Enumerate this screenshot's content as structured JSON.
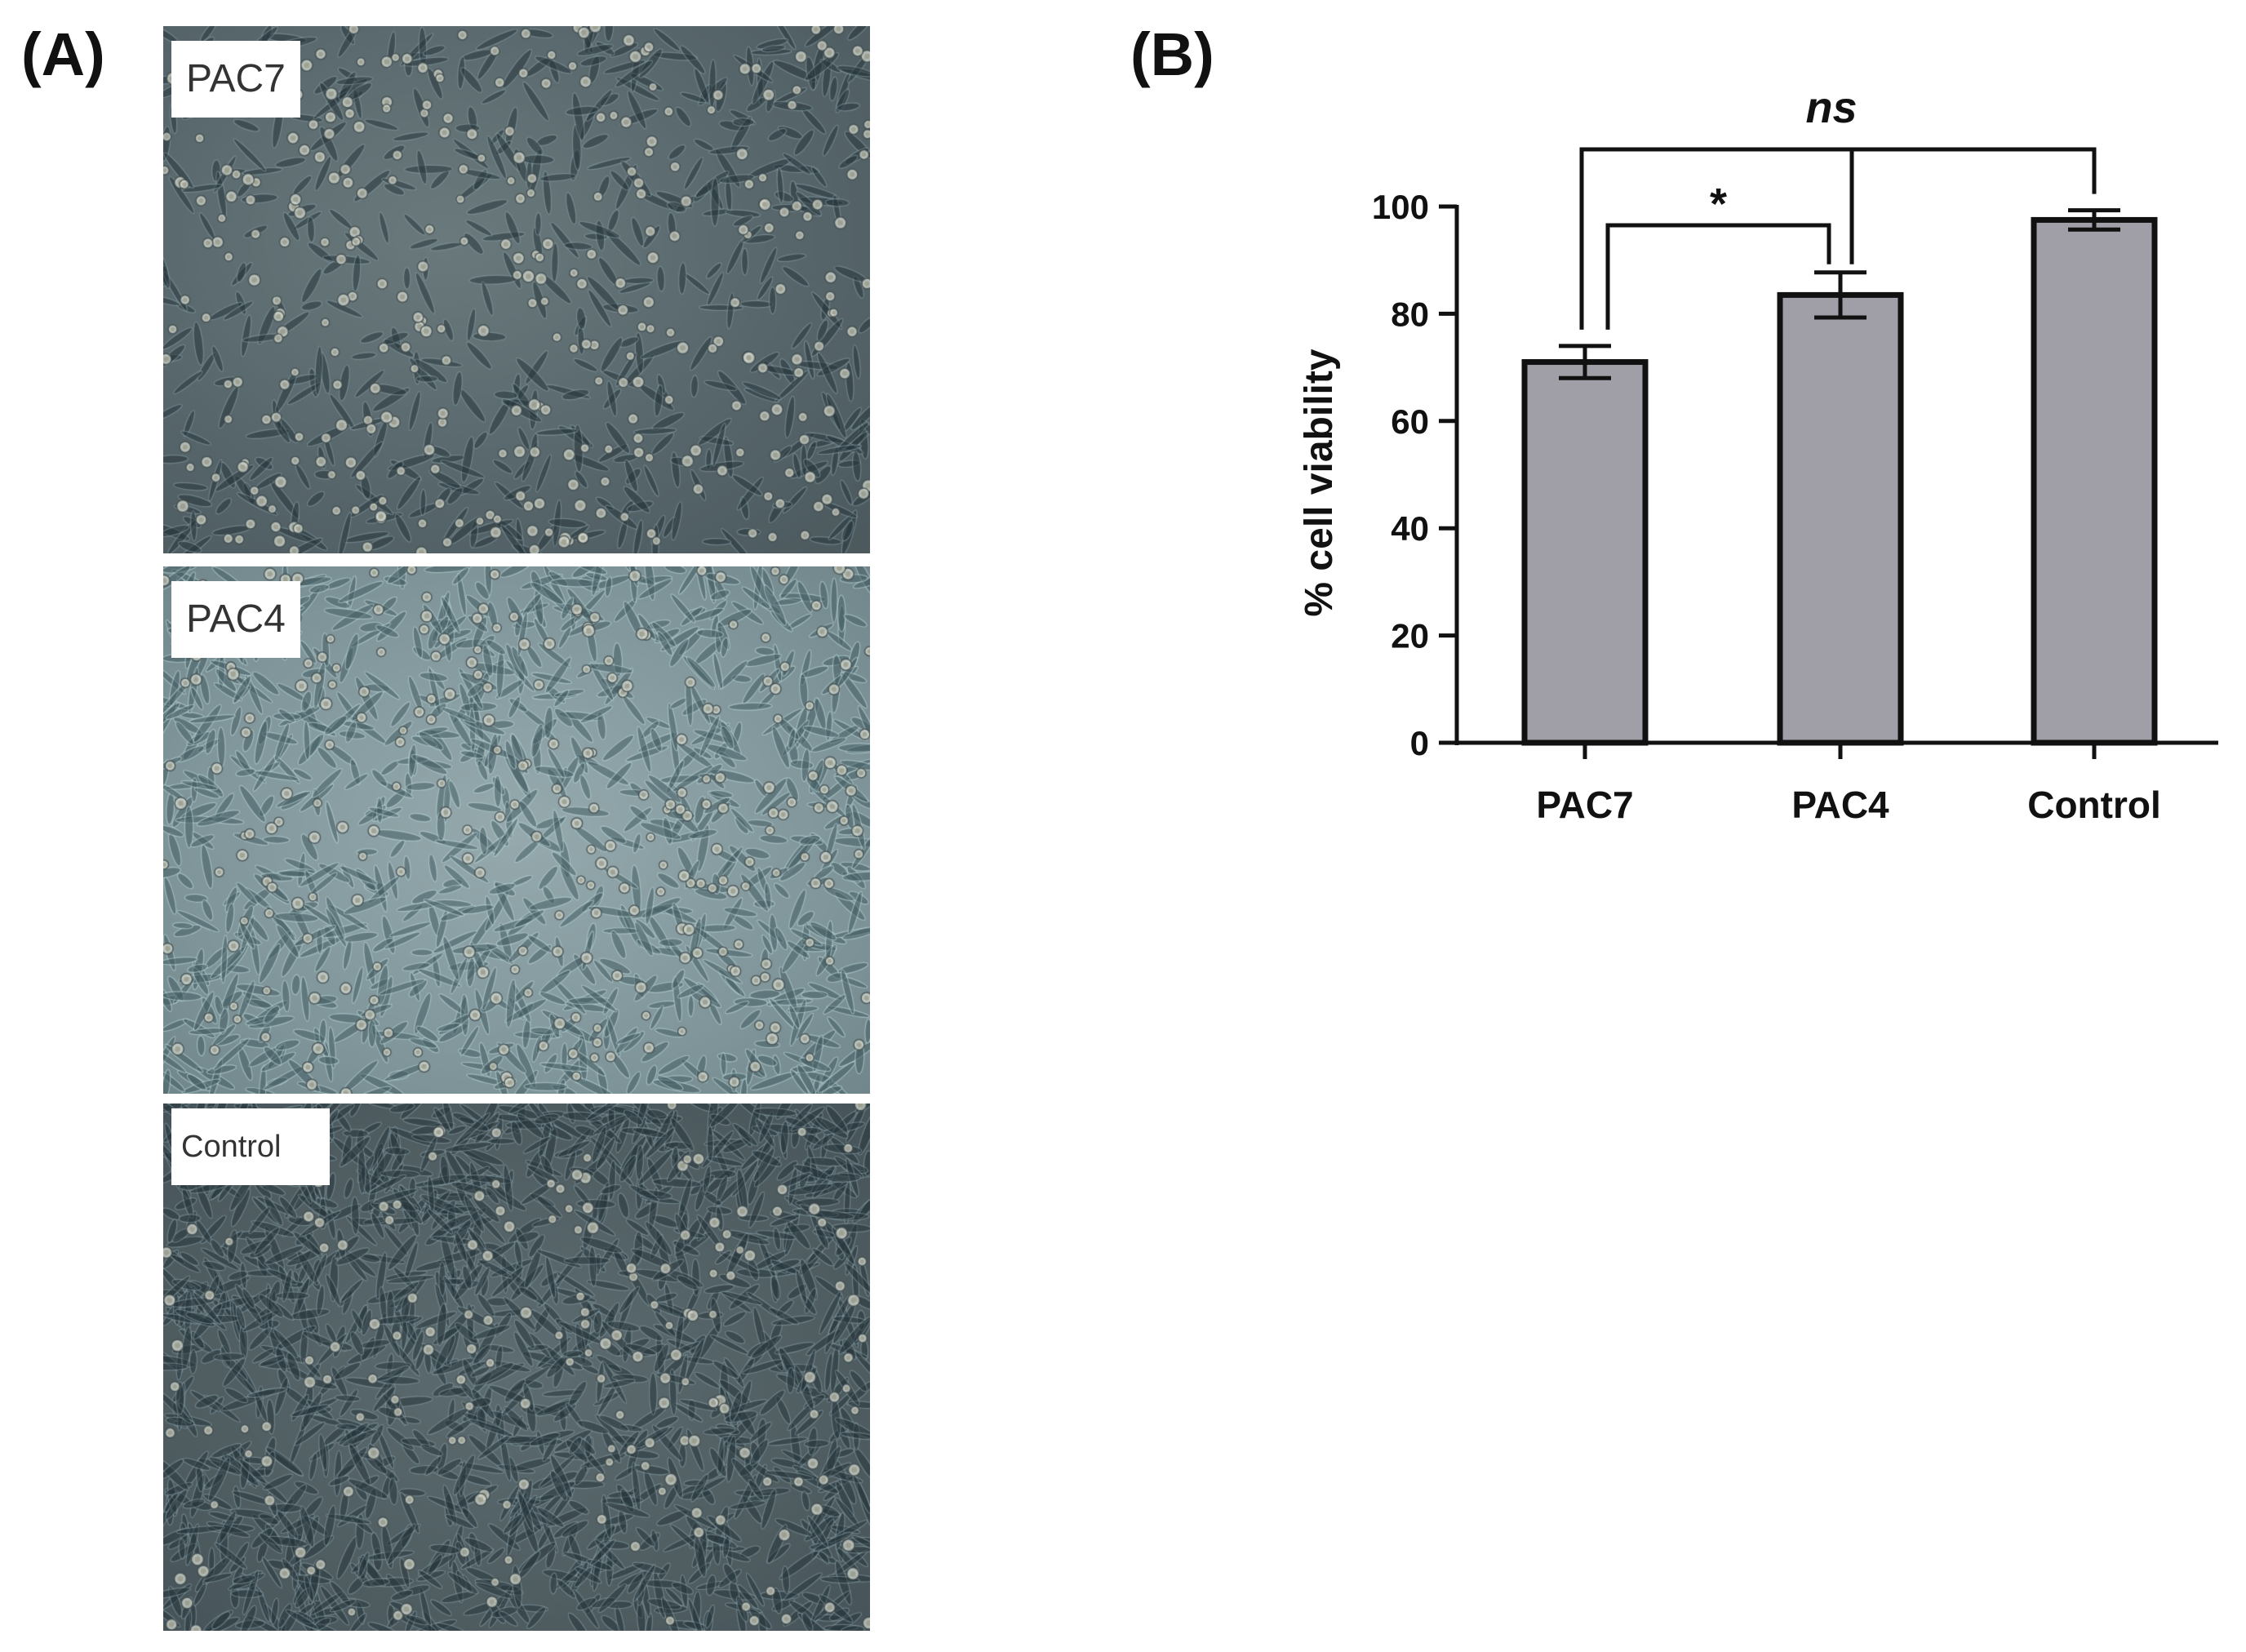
{
  "panel_a": {
    "label": "(A)",
    "images": [
      {
        "tag": "PAC7",
        "tone": "#5a696d",
        "cell_density": 0.35
      },
      {
        "tag": "PAC4",
        "tone": "#879da1",
        "cell_density": 0.65
      },
      {
        "tag": "Control",
        "tone": "#4f5d62",
        "cell_density": 1.0
      }
    ]
  },
  "panel_b": {
    "label": "(B)"
  },
  "chart_data": {
    "type": "bar",
    "title": "",
    "xlabel": "",
    "ylabel": "% cell viability",
    "categories": [
      "PAC7",
      "PAC4",
      "Control"
    ],
    "values": [
      71,
      83.5,
      97.5
    ],
    "errors": [
      3,
      4.2,
      1.8
    ],
    "ylim": [
      0,
      100
    ],
    "yticks": [
      "0",
      "20",
      "40",
      "60",
      "80",
      "100"
    ],
    "bar_color": "#a09ea6",
    "grid": false,
    "legend": "none",
    "significance": [
      {
        "from": "PAC7",
        "to": "PAC4",
        "label": "*"
      },
      {
        "from": "PAC7",
        "to": "Control",
        "label": "ns"
      }
    ]
  }
}
